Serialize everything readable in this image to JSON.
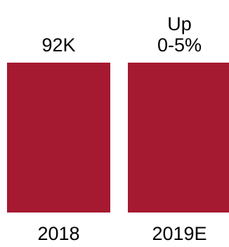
{
  "chart_data": {
    "type": "bar",
    "categories": [
      "2018",
      "2019E"
    ],
    "values": [
      92,
      92
    ],
    "unit": "K",
    "data_labels": [
      "92K",
      "Up\n0-5%"
    ],
    "title": "",
    "xlabel": "",
    "ylabel": "",
    "grid": false,
    "legend": "none",
    "bar_color": "#A51931"
  }
}
